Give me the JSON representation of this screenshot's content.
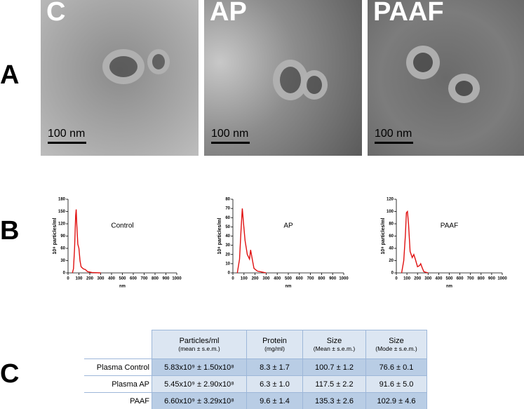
{
  "panel_labels": [
    "A",
    "B",
    "C"
  ],
  "micrographs": [
    {
      "label": "C",
      "scale_bar": "100 nm"
    },
    {
      "label": "AP",
      "scale_bar": "100 nm"
    },
    {
      "label": "PAAF",
      "scale_bar": "100 nm"
    }
  ],
  "chart_data": [
    {
      "type": "line",
      "annotation": "Control",
      "xlabel": "nm",
      "ylabel": "10⁸ particles/ml",
      "color": "#e01010",
      "x": [
        40,
        50,
        60,
        70,
        75,
        80,
        90,
        100,
        110,
        120,
        140,
        160,
        180,
        220,
        300
      ],
      "values": [
        0,
        10,
        60,
        140,
        155,
        120,
        70,
        60,
        30,
        15,
        10,
        8,
        3,
        1,
        0
      ],
      "xlim": [
        0,
        1000
      ],
      "xticks": [
        0,
        100,
        200,
        300,
        400,
        500,
        600,
        700,
        800,
        900,
        1000
      ],
      "ylim": [
        0,
        180
      ],
      "yticks": [
        0,
        30,
        60,
        90,
        120,
        150,
        180
      ]
    },
    {
      "type": "line",
      "annotation": "AP",
      "xlabel": "nm",
      "ylabel": "10⁸ particles/ml",
      "color": "#e01010",
      "x": [
        40,
        60,
        75,
        85,
        95,
        110,
        130,
        150,
        160,
        170,
        190,
        220,
        260,
        300
      ],
      "values": [
        0,
        15,
        50,
        70,
        55,
        35,
        20,
        15,
        25,
        18,
        5,
        2,
        1,
        0
      ],
      "xlim": [
        0,
        1000
      ],
      "xticks": [
        0,
        100,
        200,
        300,
        400,
        500,
        600,
        700,
        800,
        900,
        1000
      ],
      "ylim": [
        0,
        80
      ],
      "yticks": [
        0,
        10,
        20,
        30,
        40,
        50,
        60,
        70,
        80
      ]
    },
    {
      "type": "line",
      "annotation": "PAAF",
      "xlabel": "nm",
      "ylabel": "10⁸ particles/ml",
      "color": "#e01010",
      "x": [
        50,
        70,
        85,
        95,
        105,
        115,
        130,
        150,
        165,
        180,
        200,
        220,
        230,
        245,
        260,
        300
      ],
      "values": [
        0,
        20,
        60,
        98,
        100,
        80,
        35,
        25,
        30,
        22,
        10,
        12,
        15,
        8,
        2,
        0
      ],
      "xlim": [
        0,
        1000
      ],
      "xticks": [
        0,
        100,
        200,
        300,
        400,
        500,
        600,
        700,
        800,
        900,
        1000
      ],
      "ylim": [
        0,
        120
      ],
      "yticks": [
        0,
        20,
        40,
        60,
        80,
        100,
        120
      ]
    }
  ],
  "table": {
    "headers": [
      {
        "title": "Particles/ml",
        "subtitle": "(mean ± s.e.m.)"
      },
      {
        "title": "Protein",
        "subtitle": "(mg/ml)"
      },
      {
        "title": "Size",
        "subtitle": "(Mean ± s.e.m.)"
      },
      {
        "title": "Size",
        "subtitle": "(Mode ± s.e.m.)"
      }
    ],
    "rows": [
      [
        "Plasma Control",
        "5.83x10⁹ ± 1.50x10⁸",
        "8.3 ± 1.7",
        "100.7 ± 1.2",
        "76.6 ± 0.1"
      ],
      [
        "Plasma AP",
        "5.45x10⁹ ± 2.90x10⁸",
        "6.3 ± 1.0",
        "117.5 ± 2.2",
        "91.6 ± 5.0"
      ],
      [
        "PAAF",
        "6.60x10⁹ ± 3.29x10⁸",
        "9.6 ± 1.4",
        "135.3 ± 2.6",
        "102.9 ± 4.6"
      ]
    ]
  }
}
